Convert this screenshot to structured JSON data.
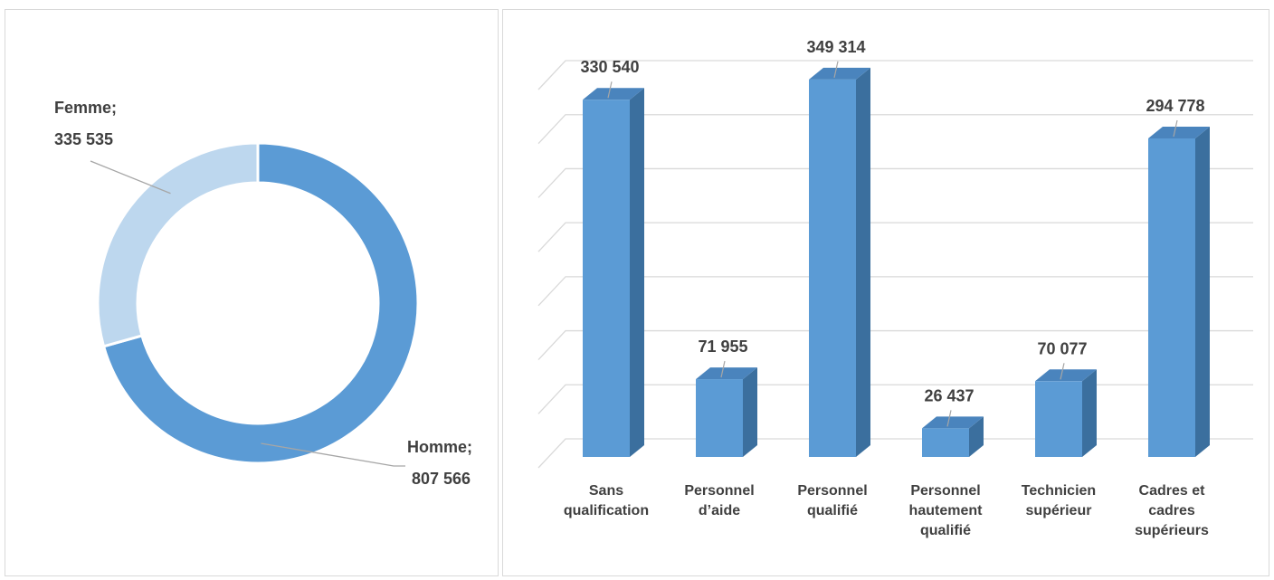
{
  "chart_data": [
    {
      "type": "donut",
      "categories": [
        "Femme",
        "Homme"
      ],
      "separator": ";",
      "values": [
        335535,
        807566
      ],
      "value_labels": [
        "335 535",
        "807 566"
      ],
      "colors": [
        "#bdd7ee",
        "#5b9bd5"
      ]
    },
    {
      "type": "bar3d",
      "categories": [
        "Sans qualification",
        "Personnel d’aide",
        "Personnel qualifié",
        "Personnel hautement qualifié",
        "Technicien supérieur",
        "Cadres et cadres supérieurs"
      ],
      "values": [
        330540,
        71955,
        349314,
        26437,
        70077,
        294778
      ],
      "value_labels": [
        "330 540",
        "71 955",
        "349 314",
        "26 437",
        "70 077",
        "294 778"
      ],
      "color": "#5b9bd5",
      "ylim": [
        0,
        350000
      ],
      "yticks": [
        0,
        50000,
        100000,
        150000,
        200000,
        250000,
        300000,
        350000
      ],
      "grid": true
    }
  ]
}
